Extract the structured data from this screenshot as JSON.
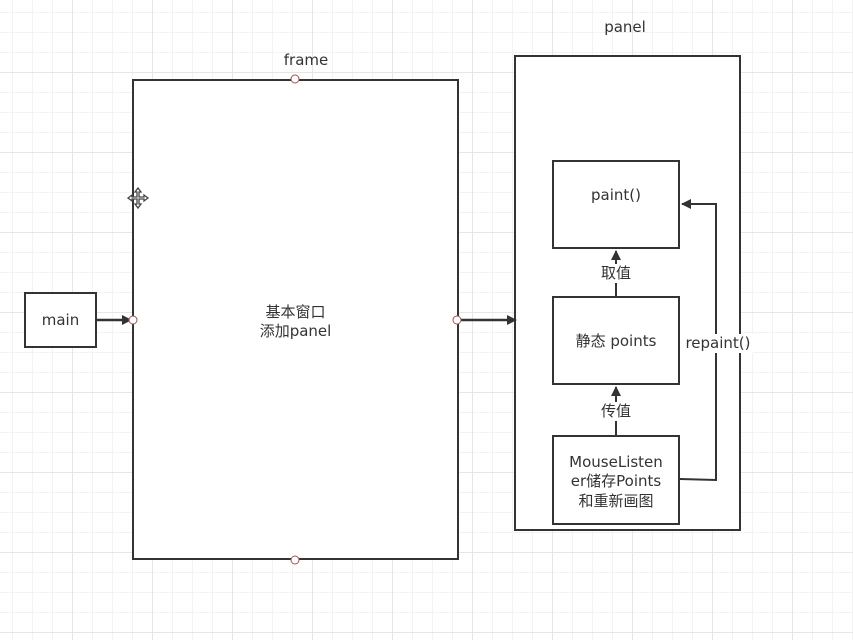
{
  "labels": {
    "frame": "frame",
    "panel": "panel"
  },
  "nodes": {
    "main": "main",
    "frame_line1": "基本窗口",
    "frame_line2": "添加panel",
    "paint": "paint()",
    "points": "静态 points",
    "listener_line1": "MouseListen",
    "listener_line2": "er储存Points",
    "listener_line3": "和重新画图"
  },
  "edges": {
    "take_value": "取值",
    "pass_value": "传值",
    "repaint": "repaint()"
  },
  "icons": {
    "move_cursor": "move-cursor-icon"
  },
  "colors": {
    "stroke": "#333333",
    "grid": "#e6e6e6",
    "connection_point": "#a05050"
  }
}
